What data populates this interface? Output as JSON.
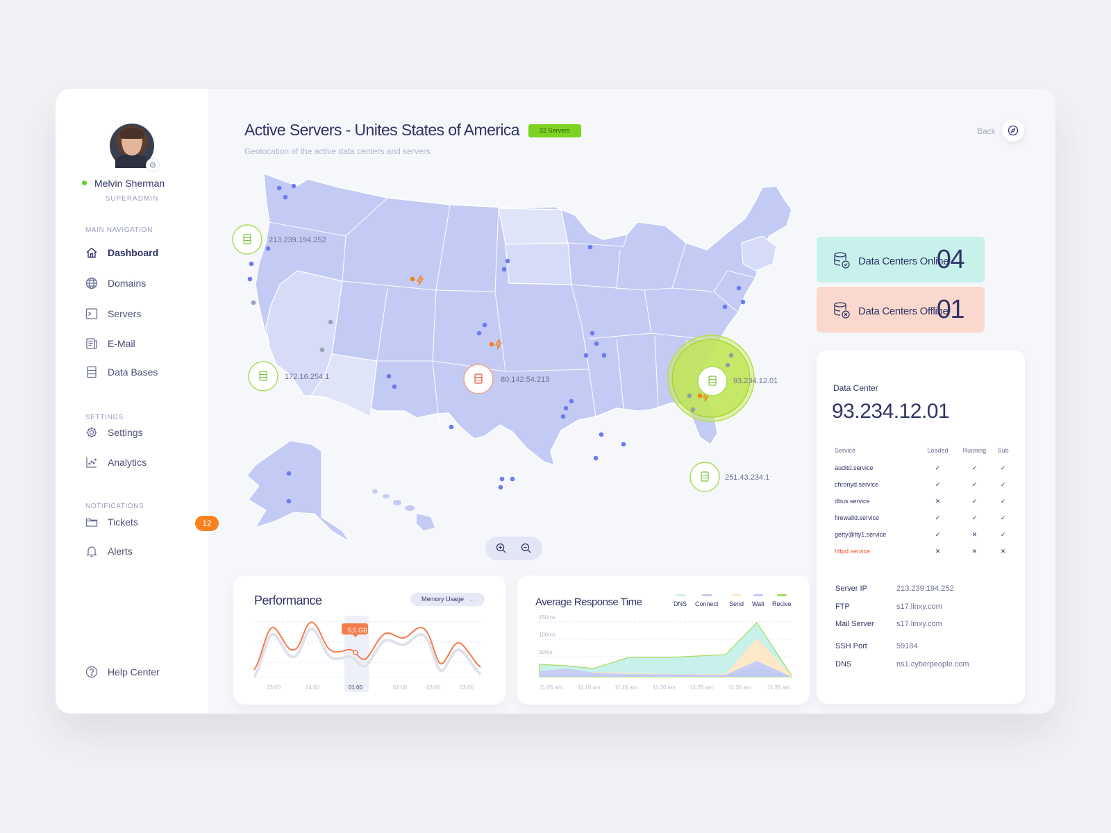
{
  "user": {
    "name": "Melvin Sherman",
    "role": "SUPERADMIN"
  },
  "nav": {
    "main_title": "MAIN NAVIGATION",
    "main": [
      {
        "label": "Dashboard",
        "icon": "home-icon"
      },
      {
        "label": "Domains",
        "icon": "globe-icon"
      },
      {
        "label": "Servers",
        "icon": "terminal-icon"
      },
      {
        "label": "E-Mail",
        "icon": "mail-icon"
      },
      {
        "label": "Data Bases",
        "icon": "database-icon"
      }
    ],
    "settings_title": "SETTINGS",
    "settings": [
      {
        "label": "Settings",
        "icon": "gear-icon"
      },
      {
        "label": "Analytics",
        "icon": "analytics-icon"
      }
    ],
    "notifications_title": "NOTIFICATIONS",
    "notifications": [
      {
        "label": "Tickets",
        "icon": "folder-icon",
        "badge": "12"
      },
      {
        "label": "Alerts",
        "icon": "bell-icon"
      }
    ],
    "help": "Help Center"
  },
  "header": {
    "title": "Active Servers - Unites States of America",
    "badge": "32 Servers",
    "subtitle": "Geolocation of the active data centers and servers",
    "back": "Back"
  },
  "map": {
    "labels": [
      "213.239.194.252",
      "172.16.254.1",
      "80.142.54.213",
      "93.234.12.01",
      "251.43.234.1"
    ]
  },
  "stats": {
    "online_label": "Data Centers Online",
    "online_value": "04",
    "offline_label": "Data Centers Offline",
    "offline_value": "01"
  },
  "data_center": {
    "heading": "Data Center",
    "ip": "93.234.12.01",
    "columns": [
      "Service",
      "Loaded",
      "Running",
      "Sub"
    ],
    "services": [
      {
        "name": "auditd.service",
        "loaded": "✓",
        "running": "✓",
        "sub": "✓"
      },
      {
        "name": "chronyd.service",
        "loaded": "✓",
        "running": "✓",
        "sub": "✓"
      },
      {
        "name": "dbus.service",
        "loaded": "✕",
        "running": "✓",
        "sub": "✓"
      },
      {
        "name": "firewalld.service",
        "loaded": "✓",
        "running": "✓",
        "sub": "✓"
      },
      {
        "name": "getty@tty1.service",
        "loaded": "✓",
        "running": "✕",
        "sub": "✓"
      },
      {
        "name": "httpd.service",
        "loaded": "✕",
        "running": "✕",
        "sub": "✕"
      }
    ],
    "info": [
      {
        "label": "Server IP",
        "value": "213.239.194.252"
      },
      {
        "label": "FTP",
        "value": "s17.linxy.com"
      },
      {
        "label": "Mail Server",
        "value": "s17.linxy.com"
      },
      {
        "label": "SSH Port",
        "value": "59184"
      },
      {
        "label": "DNS",
        "value": "ns1.cyberpeople.com"
      }
    ]
  },
  "performance": {
    "title": "Performance",
    "dropdown": "Memory Usage",
    "tooltip": "5,5 GB",
    "x_ticks": [
      "23:00",
      "24:00",
      "01:00",
      "02:00",
      "03:00",
      "03:00"
    ]
  },
  "response": {
    "title": "Average Response Time",
    "legend": [
      {
        "label": "DNS",
        "color": "#c8f1ec"
      },
      {
        "label": "Connect",
        "color": "#c7cdf5"
      },
      {
        "label": "Send",
        "color": "#fde8c7"
      },
      {
        "label": "Wait",
        "color": "#bfcaf3"
      },
      {
        "label": "Recive",
        "color": "#a8dc5b"
      }
    ],
    "y_ticks": [
      "150ms",
      "100ms",
      "50ms"
    ],
    "x_ticks": [
      "11:05 am",
      "11:10 am",
      "11:15 am",
      "11:20 am",
      "11:25 am",
      "11:30 am",
      "11:35 am"
    ]
  }
}
